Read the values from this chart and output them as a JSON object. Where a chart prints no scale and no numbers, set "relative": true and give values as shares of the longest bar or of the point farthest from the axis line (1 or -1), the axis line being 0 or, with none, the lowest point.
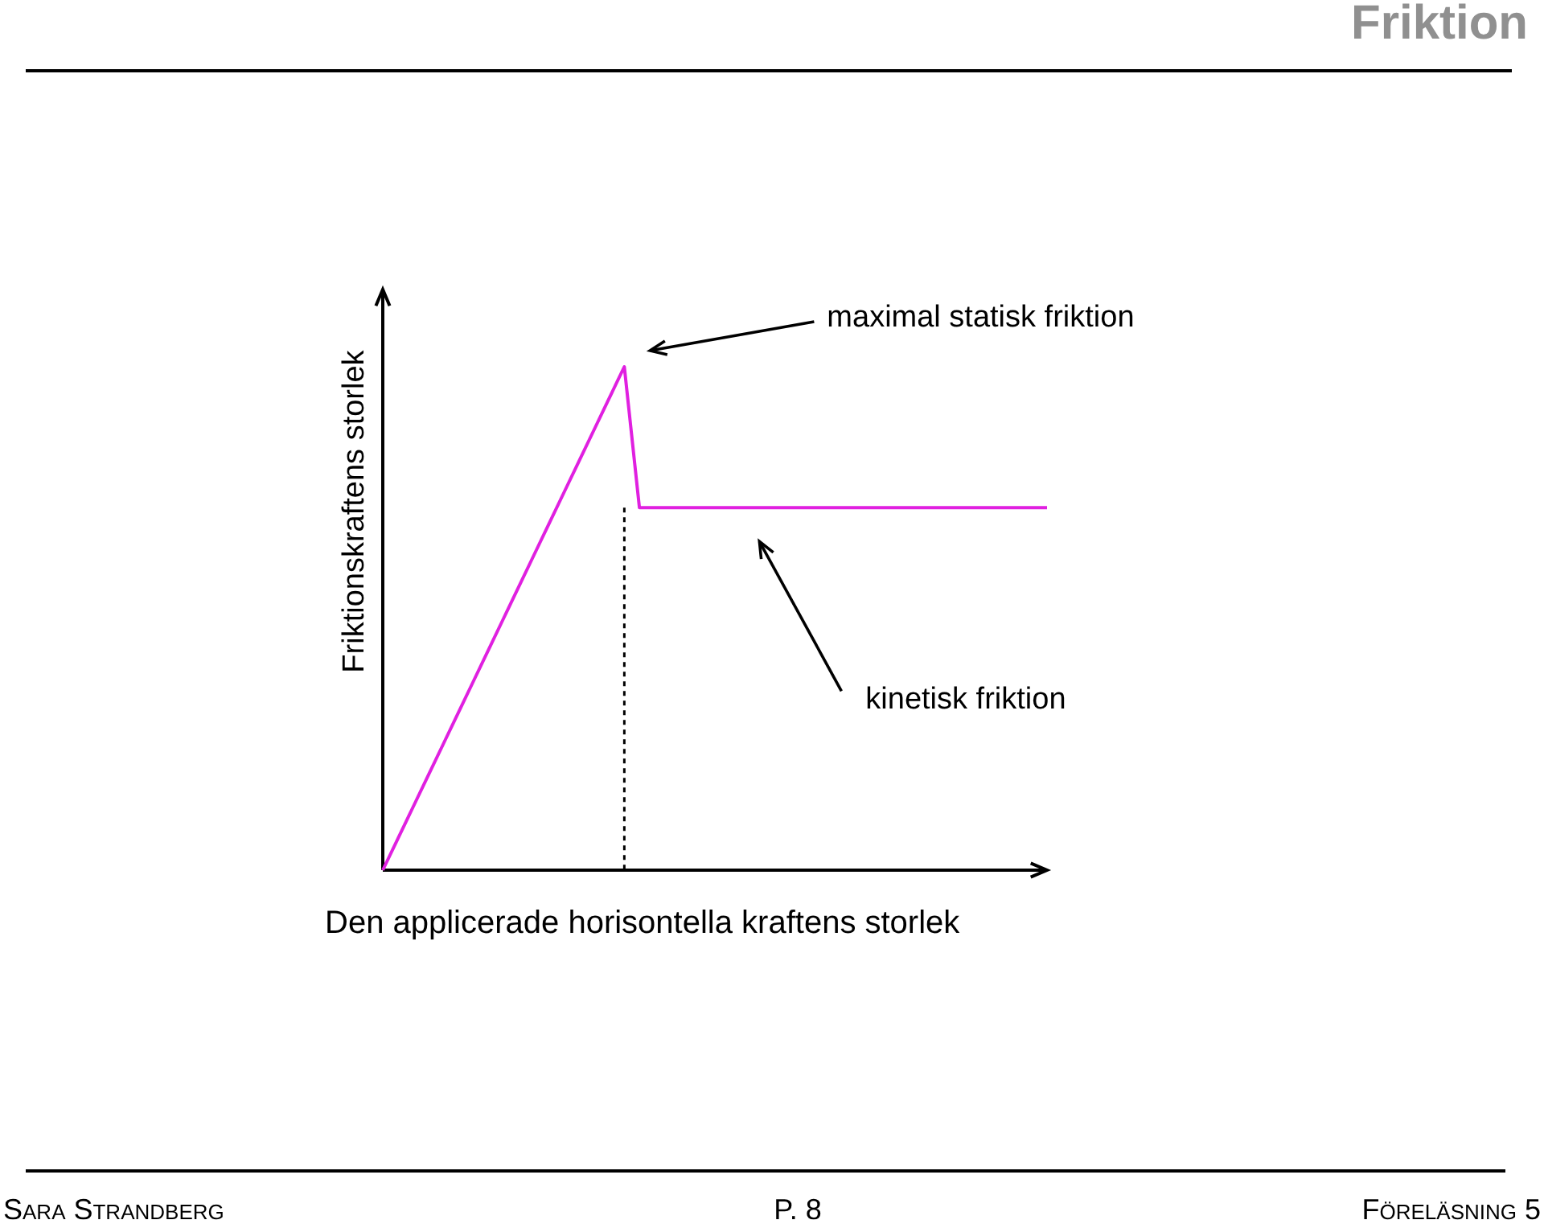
{
  "chart_data": {
    "type": "line",
    "title": "Friktion",
    "xlabel": "Den applicerade horisontella kraftens storlek",
    "ylabel": "Friktionskraftens storlek",
    "relative": true,
    "marker": "none",
    "line_style": "solid",
    "categories": [
      null,
      null,
      null,
      null,
      null,
      null,
      null,
      null,
      null,
      null,
      null,
      null,
      null,
      null,
      null,
      null,
      null,
      null,
      null,
      null,
      null,
      null,
      null,
      null,
      null,
      null,
      null,
      null,
      null,
      null,
      null,
      null,
      null,
      null,
      null,
      null,
      null,
      null,
      null,
      null,
      null,
      null,
      null,
      null,
      null
    ],
    "series": [
      {
        "color": "#e020e0",
        "values": [
          0,
          0.0625,
          0.125,
          0.1875,
          0.25,
          0.3125,
          0.375,
          0.4375,
          0.5,
          0.5625,
          0.625,
          0.6875,
          0.75,
          0.8125,
          0.875,
          0.9375,
          1,
          0.72,
          0.72,
          0.72,
          0.72,
          0.72,
          0.72,
          0.72,
          0.72,
          0.72,
          0.72,
          0.72,
          0.72,
          0.72,
          0.72,
          0.72,
          0.72,
          0.72,
          0.72,
          0.72,
          0.72,
          0.72,
          0.72,
          0.72,
          0.72,
          0.72,
          0.72,
          0.72,
          0.72
        ]
      }
    ],
    "annotations": [
      "maximal statisk friktion",
      "kinetisk friktion",
      "Sara Strandberg",
      "P. 8",
      "Föreläsning 5"
    ]
  }
}
